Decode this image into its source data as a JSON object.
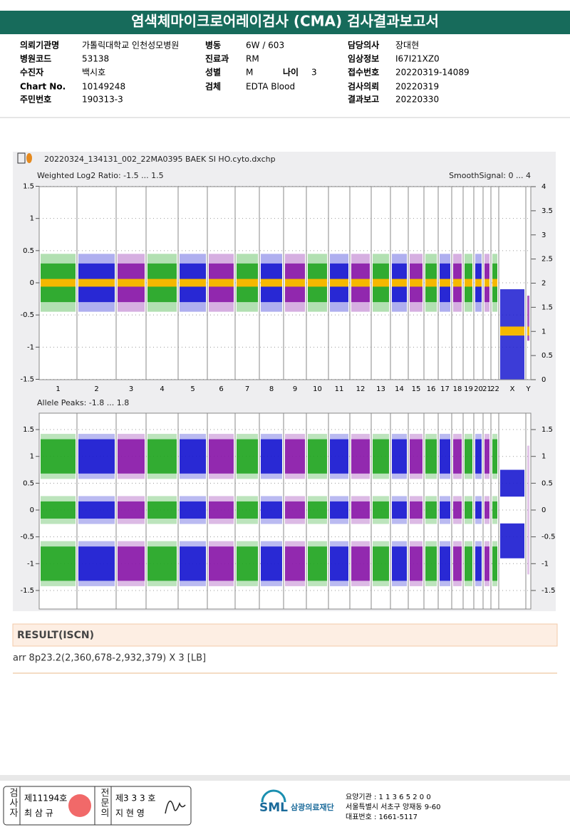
{
  "header": {
    "title": "염색체마이크로어레이검사 (CMA) 검사결과보고서"
  },
  "info": {
    "rows": [
      {
        "left": [
          "의뢰기관명",
          "가톨릭대학교 인천성모병원"
        ],
        "middle": [
          [
            "병동",
            "6W / 603"
          ]
        ],
        "right": [
          "담당의사",
          "장대현"
        ]
      },
      {
        "left": [
          "병원코드",
          "53138"
        ],
        "middle": [
          [
            "진료과",
            "RM"
          ]
        ],
        "right": [
          "임상정보",
          "I67I21XZ0"
        ]
      },
      {
        "left": [
          "수진자",
          "백시호"
        ],
        "middle": [
          [
            "성별",
            "M"
          ],
          [
            "나이",
            "3"
          ]
        ],
        "right": [
          "접수번호",
          "20220319-14089"
        ]
      },
      {
        "left": [
          "Chart No.",
          "10149248"
        ],
        "middle": [
          [
            "검체",
            "EDTA Blood"
          ]
        ],
        "right": [
          "검사의뢰",
          "20220319"
        ]
      },
      {
        "left": [
          "주민번호",
          "190313-3"
        ],
        "right": [
          "결과보고",
          "20220330"
        ]
      }
    ]
  },
  "plot": {
    "filename": "20220324_134131_002_22MA0395 BAEK SI HO.cyto.dxchp",
    "top": {
      "label": "Weighted Log2 Ratio: -1.5 ... 1.5",
      "right_label": "SmoothSignal: 0 ... 4",
      "yticks": [
        "1.5",
        "1",
        "0.5",
        "0",
        "-0.5",
        "-1",
        "-1.5"
      ],
      "y2ticks": [
        "4",
        "3.5",
        "3",
        "2.5",
        "2",
        "1.5",
        "1",
        "0.5",
        "0"
      ]
    },
    "chromosomes": [
      "1",
      "2",
      "3",
      "4",
      "5",
      "6",
      "7",
      "8",
      "9",
      "10",
      "11",
      "12",
      "13",
      "14",
      "15",
      "16",
      "17",
      "18",
      "19",
      "20",
      "21",
      "22",
      "X",
      "Y"
    ],
    "bottom": {
      "label": "Allele Peaks: -1.8 ... 1.8",
      "yticks": [
        "1.5",
        "1",
        "0.5",
        "0",
        "-0.5",
        "-1",
        "-1.5"
      ],
      "y2ticks": [
        "1.5",
        "1",
        "0.5",
        "0",
        "-0.5",
        "-1",
        "-1.5"
      ]
    }
  },
  "result": {
    "title": "RESULT(ISCN)",
    "text": "arr 8p23.2(2,360,678-2,932,379) X 3 [LB]"
  },
  "footer": {
    "examiner_title": "검사자",
    "examiner_no": "제11194호",
    "examiner_name": "최 삼 규",
    "specialist_title": "전문의",
    "specialist_no": "제3 3 3 호",
    "specialist_name": "지 현 영",
    "logo": "SML",
    "org": "삼광의료재단",
    "address": [
      "요양기관 : 1 1 3 6 5 2 0 0",
      "서울특별시 서초구 양재동 9-60",
      "대표번호 : 1661-5117"
    ]
  }
}
